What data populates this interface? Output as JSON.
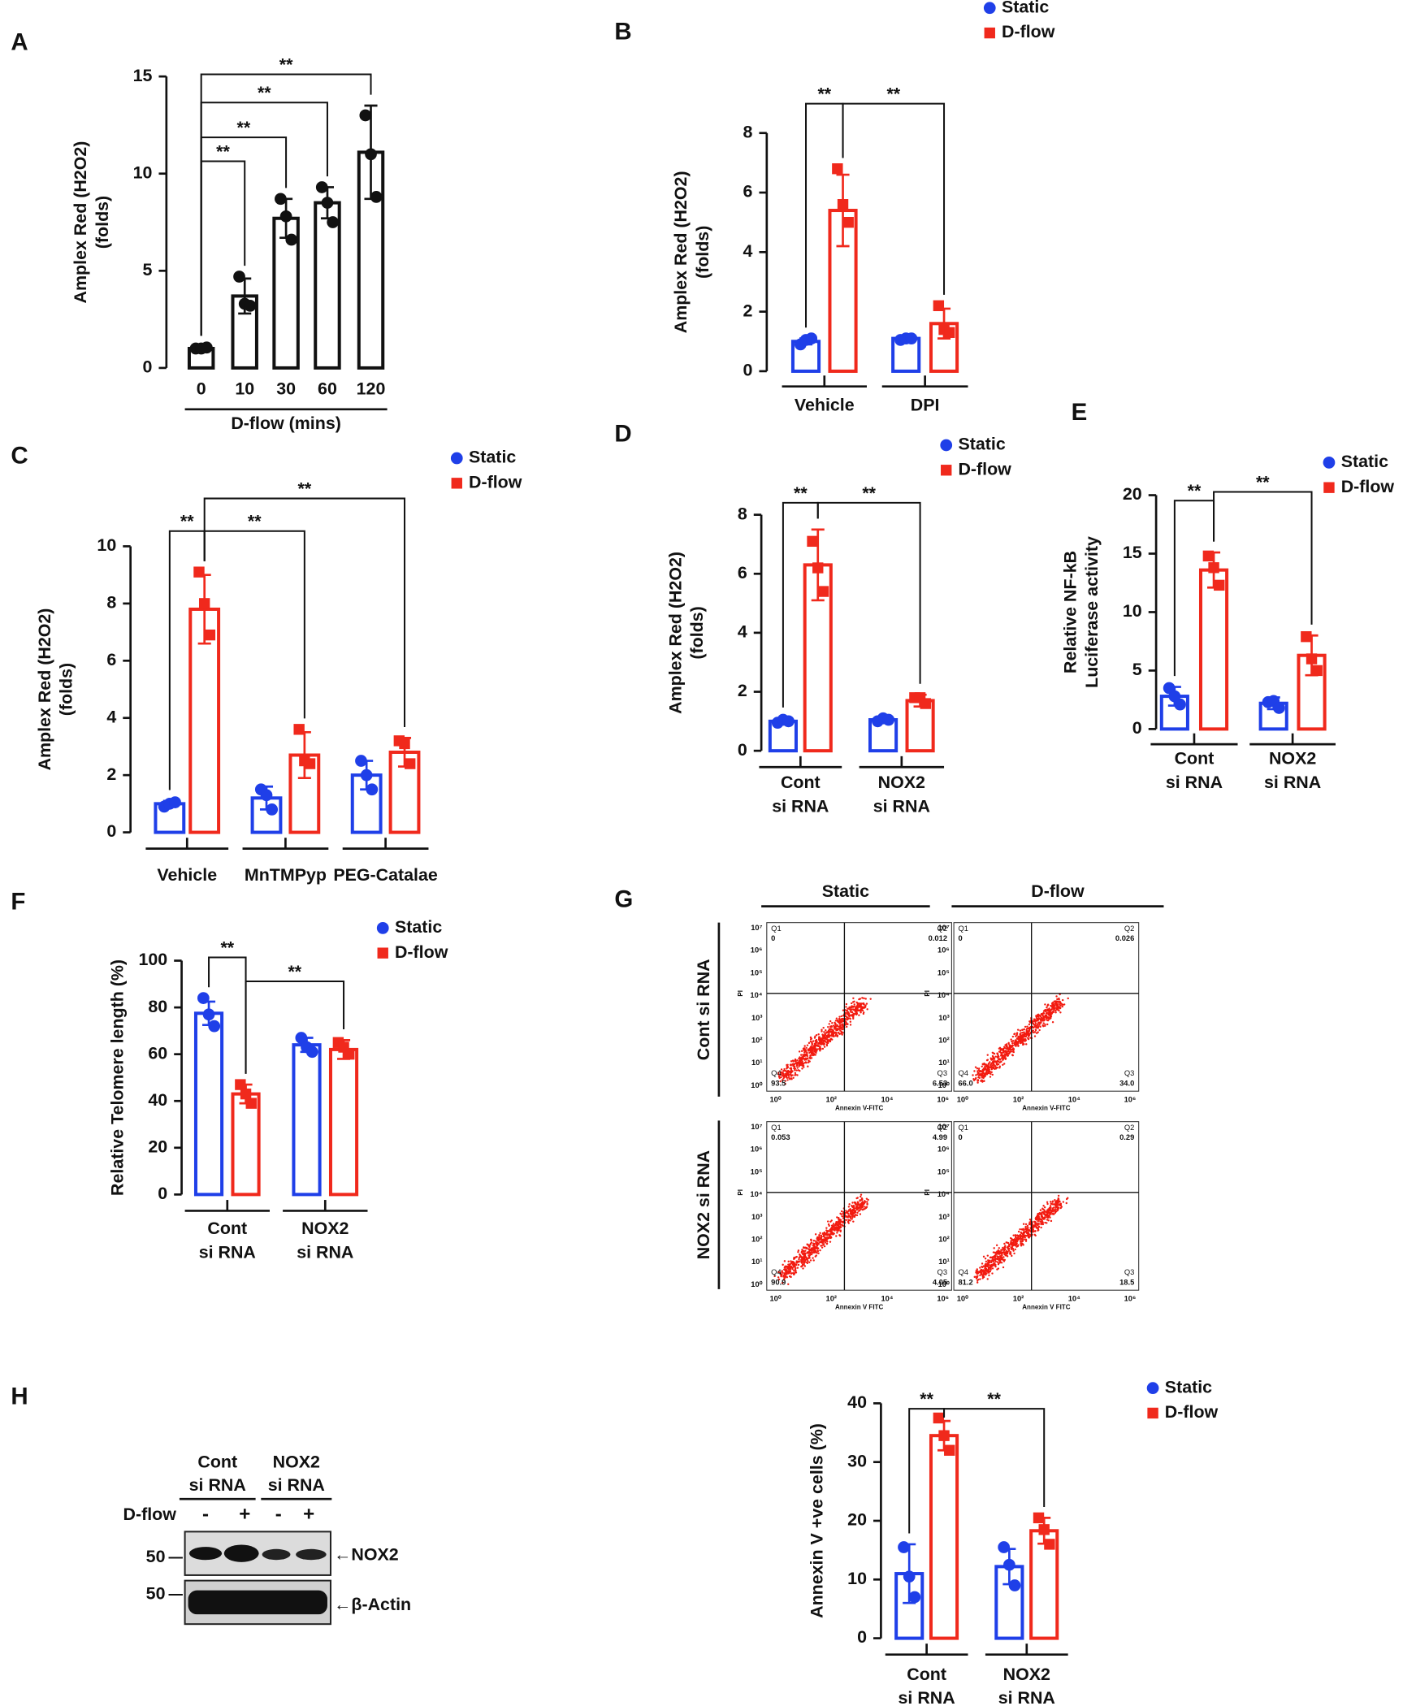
{
  "chart_data": [
    {
      "type": "bar",
      "panel": "A",
      "ylabel": [
        "Amplex Red (H2O2)",
        "(folds)"
      ],
      "xlabel": "D-flow (mins)",
      "categories": [
        "0",
        "10",
        "30",
        "60",
        "120"
      ],
      "series": [
        {
          "color": "#111111",
          "values": [
            1.0,
            3.7,
            7.7,
            8.5,
            11.1
          ],
          "errors": [
            0.1,
            0.9,
            1.0,
            0.8,
            2.4
          ],
          "points": [
            [
              1.0,
              1.0,
              1.05
            ],
            [
              4.7,
              3.3,
              3.2
            ],
            [
              8.7,
              7.8,
              6.6
            ],
            [
              9.3,
              8.5,
              7.5
            ],
            [
              13.0,
              11.0,
              8.8
            ]
          ]
        }
      ],
      "ylim": [
        0,
        15
      ],
      "yticks": [
        0,
        5,
        10,
        15
      ],
      "significance": [
        {
          "from": [
            0,
            0
          ],
          "to": [
            0,
            1
          ],
          "label": "**"
        },
        {
          "from": [
            0,
            0
          ],
          "to": [
            0,
            2
          ],
          "label": "**"
        },
        {
          "from": [
            0,
            0
          ],
          "to": [
            0,
            3
          ],
          "label": "**"
        },
        {
          "from": [
            0,
            0
          ],
          "to": [
            0,
            4
          ],
          "label": "**"
        }
      ]
    },
    {
      "type": "bar",
      "panel": "B",
      "ylabel": [
        "Amplex Red (H2O2)",
        "(folds)"
      ],
      "categories": [
        [
          "Vehicle"
        ],
        [
          "DPI"
        ]
      ],
      "series": [
        {
          "name": "Static",
          "color": "#1f3fe8",
          "values": [
            1.0,
            1.1
          ],
          "errors": [
            0.1,
            0.1
          ],
          "points": [
            [
              0.9,
              1.05,
              1.1
            ],
            [
              1.05,
              1.1,
              1.1
            ]
          ]
        },
        {
          "name": "D-flow",
          "color": "#f0291c",
          "values": [
            5.4,
            1.6
          ],
          "errors": [
            1.2,
            0.5
          ],
          "points": [
            [
              6.8,
              5.6,
              5.0
            ],
            [
              2.2,
              1.4,
              1.3
            ]
          ]
        }
      ],
      "ylim": [
        0,
        8
      ],
      "yticks": [
        0,
        2,
        4,
        6,
        8
      ],
      "significance": [
        {
          "from": [
            0,
            0
          ],
          "to": [
            1,
            0
          ],
          "label": "**"
        },
        {
          "from": [
            1,
            0
          ],
          "to": [
            1,
            1
          ],
          "label": "**"
        }
      ]
    },
    {
      "type": "bar",
      "panel": "C",
      "ylabel": [
        "Amplex Red (H2O2)",
        "(folds)"
      ],
      "categories": [
        [
          "Vehicle"
        ],
        [
          "MnTMPyp"
        ],
        [
          "PEG-Catalae"
        ]
      ],
      "series": [
        {
          "name": "Static",
          "color": "#1f3fe8",
          "values": [
            1.0,
            1.2,
            2.0
          ],
          "errors": [
            0.1,
            0.4,
            0.5
          ],
          "points": [
            [
              0.9,
              1.0,
              1.05
            ],
            [
              1.5,
              1.3,
              0.8
            ],
            [
              2.5,
              2.0,
              1.5
            ]
          ]
        },
        {
          "name": "D-flow",
          "color": "#f0291c",
          "values": [
            7.8,
            2.7,
            2.8
          ],
          "errors": [
            1.2,
            0.8,
            0.5
          ],
          "points": [
            [
              9.1,
              8.0,
              6.9
            ],
            [
              3.6,
              2.5,
              2.4
            ],
            [
              3.2,
              3.1,
              2.4
            ]
          ]
        }
      ],
      "ylim": [
        0,
        10
      ],
      "yticks": [
        0,
        2,
        4,
        6,
        8,
        10
      ],
      "significance": [
        {
          "from": [
            0,
            0
          ],
          "to": [
            1,
            0
          ],
          "label": "**"
        },
        {
          "from": [
            1,
            0
          ],
          "to": [
            1,
            1
          ],
          "label": "**"
        },
        {
          "from": [
            1,
            0
          ],
          "to": [
            1,
            2
          ],
          "label": "**"
        }
      ]
    },
    {
      "type": "bar",
      "panel": "D",
      "ylabel": [
        "Amplex Red (H2O2)",
        "(folds)"
      ],
      "categories": [
        [
          "Cont",
          "si RNA"
        ],
        [
          "NOX2",
          "si RNA"
        ]
      ],
      "series": [
        {
          "name": "Static",
          "color": "#1f3fe8",
          "values": [
            1.0,
            1.05
          ],
          "errors": [
            0.1,
            0.05
          ],
          "points": [
            [
              0.95,
              1.05,
              1.0
            ],
            [
              1.0,
              1.1,
              1.05
            ]
          ]
        },
        {
          "name": "D-flow",
          "color": "#f0291c",
          "values": [
            6.3,
            1.7
          ],
          "errors": [
            1.2,
            0.2
          ],
          "points": [
            [
              7.1,
              6.2,
              5.4
            ],
            [
              1.8,
              1.8,
              1.6
            ]
          ]
        }
      ],
      "ylim": [
        0,
        8
      ],
      "yticks": [
        0,
        2,
        4,
        6,
        8
      ],
      "significance": [
        {
          "from": [
            0,
            0
          ],
          "to": [
            1,
            0
          ],
          "label": "**"
        },
        {
          "from": [
            1,
            0
          ],
          "to": [
            1,
            1
          ],
          "label": "**"
        }
      ]
    },
    {
      "type": "bar",
      "panel": "E",
      "ylabel": [
        "Relative NF-kB",
        "Luciferase activity"
      ],
      "categories": [
        [
          "Cont",
          "si RNA"
        ],
        [
          "NOX2",
          "si RNA"
        ]
      ],
      "series": [
        {
          "name": "Static",
          "color": "#1f3fe8",
          "values": [
            2.8,
            2.2
          ],
          "errors": [
            0.8,
            0.5
          ],
          "points": [
            [
              3.5,
              2.8,
              2.1
            ],
            [
              2.3,
              2.4,
              1.8
            ]
          ]
        },
        {
          "name": "D-flow",
          "color": "#f0291c",
          "values": [
            13.6,
            6.3
          ],
          "errors": [
            1.5,
            1.7
          ],
          "points": [
            [
              14.8,
              13.8,
              12.3
            ],
            [
              7.9,
              6.0,
              5.0
            ]
          ]
        }
      ],
      "ylim": [
        0,
        20
      ],
      "yticks": [
        0,
        5,
        10,
        15,
        20
      ],
      "significance": [
        {
          "from": [
            0,
            0
          ],
          "to": [
            1,
            0
          ],
          "label": "**"
        },
        {
          "from": [
            1,
            0
          ],
          "to": [
            1,
            1
          ],
          "label": "**"
        }
      ]
    },
    {
      "type": "bar",
      "panel": "F",
      "ylabel": [
        "Relative Telomere length (%)"
      ],
      "categories": [
        [
          "Cont",
          "si RNA"
        ],
        [
          "NOX2",
          "si RNA"
        ]
      ],
      "series": [
        {
          "name": "Static",
          "color": "#1f3fe8",
          "values": [
            77.5,
            64
          ],
          "errors": [
            5,
            3
          ],
          "points": [
            [
              84,
              77,
              72
            ],
            [
              67,
              63,
              61
            ]
          ]
        },
        {
          "name": "D-flow",
          "color": "#f0291c",
          "values": [
            43,
            62
          ],
          "errors": [
            4,
            4
          ],
          "points": [
            [
              47,
              43,
              39
            ],
            [
              65,
              63,
              60
            ]
          ]
        }
      ],
      "ylim": [
        0,
        100
      ],
      "yticks": [
        0,
        20,
        40,
        60,
        80,
        100
      ],
      "significance": [
        {
          "from": [
            0,
            0
          ],
          "to": [
            1,
            0
          ],
          "label": "**"
        },
        {
          "from": [
            1,
            0
          ],
          "to": [
            1,
            1
          ],
          "label": "**"
        }
      ]
    },
    {
      "type": "bar",
      "ylabel": [
        "Annexin V +ve cells (%)"
      ],
      "categories": [
        [
          "Cont",
          "si RNA"
        ],
        [
          "NOX2",
          "si RNA"
        ]
      ],
      "series": [
        {
          "name": "Static",
          "color": "#1f3fe8",
          "values": [
            11,
            12.2
          ],
          "errors": [
            5,
            3
          ],
          "points": [
            [
              15.5,
              10.5,
              7
            ],
            [
              15.5,
              12.5,
              9
            ]
          ]
        },
        {
          "name": "D-flow",
          "color": "#f0291c",
          "values": [
            34.5,
            18.3
          ],
          "errors": [
            2.5,
            2.2
          ],
          "points": [
            [
              37.5,
              34.5,
              32
            ],
            [
              20.5,
              18.5,
              16
            ]
          ]
        }
      ],
      "ylim": [
        0,
        40
      ],
      "yticks": [
        0,
        10,
        20,
        30,
        40
      ],
      "significance": [
        {
          "from": [
            0,
            0
          ],
          "to": [
            1,
            0
          ],
          "label": "**"
        },
        {
          "from": [
            1,
            0
          ],
          "to": [
            1,
            1
          ],
          "label": "**"
        }
      ]
    }
  ],
  "flow": {
    "panel": "G",
    "columns": [
      "Static",
      "D-flow"
    ],
    "rows": [
      "Cont si RNA",
      "NOX2 si RNA"
    ],
    "ylabel": "PI",
    "yticks": [
      "10⁰",
      "10¹",
      "10²",
      "10³",
      "10⁴",
      "10⁵",
      "10⁶",
      "10⁷"
    ],
    "xticks": [
      "10⁰",
      "10²",
      "10⁴",
      "10⁶"
    ],
    "plots": [
      {
        "xlabel": "Annexin V-FITC",
        "quadrants": [
          {
            "name": "Q1",
            "value": "0"
          },
          {
            "name": "Q2",
            "value": "0.012"
          },
          {
            "name": "Q3",
            "value": "6.53"
          },
          {
            "name": "Q4",
            "value": "93.5"
          }
        ]
      },
      {
        "xlabel": "Annexin V-FITC",
        "quadrants": [
          {
            "name": "Q1",
            "value": "0"
          },
          {
            "name": "Q2",
            "value": "0.026"
          },
          {
            "name": "Q3",
            "value": "34.0"
          },
          {
            "name": "Q4",
            "value": "66.0"
          }
        ]
      },
      {
        "xlabel": "Annexin V FITC",
        "quadrants": [
          {
            "name": "Q1",
            "value": "0.053"
          },
          {
            "name": "Q2",
            "value": "4.99"
          },
          {
            "name": "Q3",
            "value": "4.05"
          },
          {
            "name": "Q4",
            "value": "90.9"
          }
        ]
      },
      {
        "xlabel": "Annexin V FITC",
        "quadrants": [
          {
            "name": "Q1",
            "value": "0"
          },
          {
            "name": "Q2",
            "value": "0.29"
          },
          {
            "name": "Q3",
            "value": "18.5"
          },
          {
            "name": "Q4",
            "value": "81.2"
          }
        ]
      }
    ]
  },
  "blot": {
    "panel": "H",
    "groups": [
      [
        "Cont",
        "si RNA"
      ],
      [
        "NOX2",
        "si RNA"
      ]
    ],
    "treatment": "D-flow",
    "signs": [
      "-",
      "+",
      "-",
      "+"
    ],
    "markers": [
      "50",
      "50"
    ],
    "proteins": [
      "←NOX2",
      "←β-Actin"
    ]
  }
}
